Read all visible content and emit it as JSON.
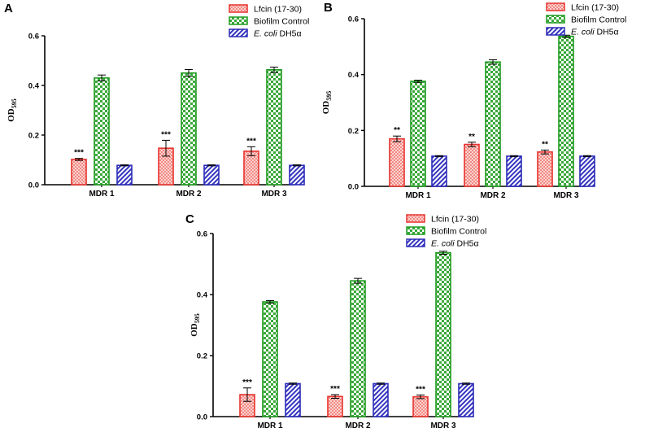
{
  "chart_data": [
    {
      "panel": "A",
      "type": "bar",
      "ylabel": "OD",
      "ylabel_sub": "595",
      "categories": [
        "MDR 1",
        "MDR 2",
        "MDR 3"
      ],
      "ylim": [
        0,
        0.6
      ],
      "yticks": [
        "0.0",
        "0.2",
        "0.4",
        "0.6"
      ],
      "series": [
        {
          "name": "Lfcin (17-30)",
          "values": [
            0.102,
            0.147,
            0.135
          ],
          "errors": [
            0.004,
            0.032,
            0.018
          ],
          "annotations": [
            "***",
            "***",
            "***"
          ]
        },
        {
          "name": "Biofilm Control",
          "values": [
            0.43,
            0.45,
            0.463
          ],
          "errors": [
            0.012,
            0.014,
            0.011
          ],
          "annotations": [
            "",
            "",
            ""
          ]
        },
        {
          "name": "E. coli DH5α",
          "values": [
            0.078,
            0.078,
            0.078
          ],
          "errors": [
            0.002,
            0.002,
            0.002
          ],
          "annotations": [
            "",
            "",
            ""
          ]
        }
      ]
    },
    {
      "panel": "B",
      "type": "bar",
      "ylabel": "OD",
      "ylabel_sub": "595",
      "categories": [
        "MDR 1",
        "MDR 2",
        "MDR 3"
      ],
      "ylim": [
        0,
        0.6
      ],
      "yticks": [
        "0.0",
        "0.2",
        "0.4",
        "0.6"
      ],
      "series": [
        {
          "name": "Lfcin (17-30)",
          "values": [
            0.17,
            0.15,
            0.123
          ],
          "errors": [
            0.01,
            0.008,
            0.007
          ],
          "annotations": [
            "**",
            "**",
            "**"
          ]
        },
        {
          "name": "Biofilm Control",
          "values": [
            0.376,
            0.445,
            0.537
          ],
          "errors": [
            0.004,
            0.008,
            0.004
          ],
          "annotations": [
            "",
            "",
            ""
          ]
        },
        {
          "name": "E. coli DH5α",
          "values": [
            0.108,
            0.108,
            0.108
          ],
          "errors": [
            0.002,
            0.002,
            0.002
          ],
          "annotations": [
            "",
            "",
            ""
          ]
        }
      ]
    },
    {
      "panel": "C",
      "type": "bar",
      "ylabel": "OD",
      "ylabel_sub": "595",
      "categories": [
        "MDR 1",
        "MDR 2",
        "MDR 3"
      ],
      "ylim": [
        0,
        0.6
      ],
      "yticks": [
        "0.0",
        "0.2",
        "0.4",
        "0.6"
      ],
      "series": [
        {
          "name": "Lfcin (17-30)",
          "values": [
            0.072,
            0.066,
            0.065
          ],
          "errors": [
            0.022,
            0.006,
            0.006
          ],
          "annotations": [
            "***",
            "***",
            "***"
          ]
        },
        {
          "name": "Biofilm Control",
          "values": [
            0.376,
            0.445,
            0.537
          ],
          "errors": [
            0.004,
            0.008,
            0.005
          ],
          "annotations": [
            "",
            "",
            ""
          ]
        },
        {
          "name": "E. coli DH5α",
          "values": [
            0.108,
            0.108,
            0.108
          ],
          "errors": [
            0.002,
            0.002,
            0.002
          ],
          "annotations": [
            "",
            "",
            ""
          ]
        }
      ]
    }
  ],
  "legend": {
    "items": [
      {
        "label": "Lfcin (17-30)",
        "label_italic": "",
        "label_rest": ""
      },
      {
        "label": "Biofilm Control",
        "label_italic": "",
        "label_rest": ""
      },
      {
        "label": "",
        "label_italic": "E. coli",
        "label_rest": " DH5α"
      }
    ]
  },
  "colors": {
    "lfcin_stroke": "#e8322e",
    "lfcin_fill": "#f7b9b5",
    "control_stroke": "#1e9a1e",
    "control_fill": "#cdeccd",
    "ecoli_stroke": "#2b2bb8",
    "ecoli_fill": "#aaaae6",
    "axis": "#000000"
  }
}
